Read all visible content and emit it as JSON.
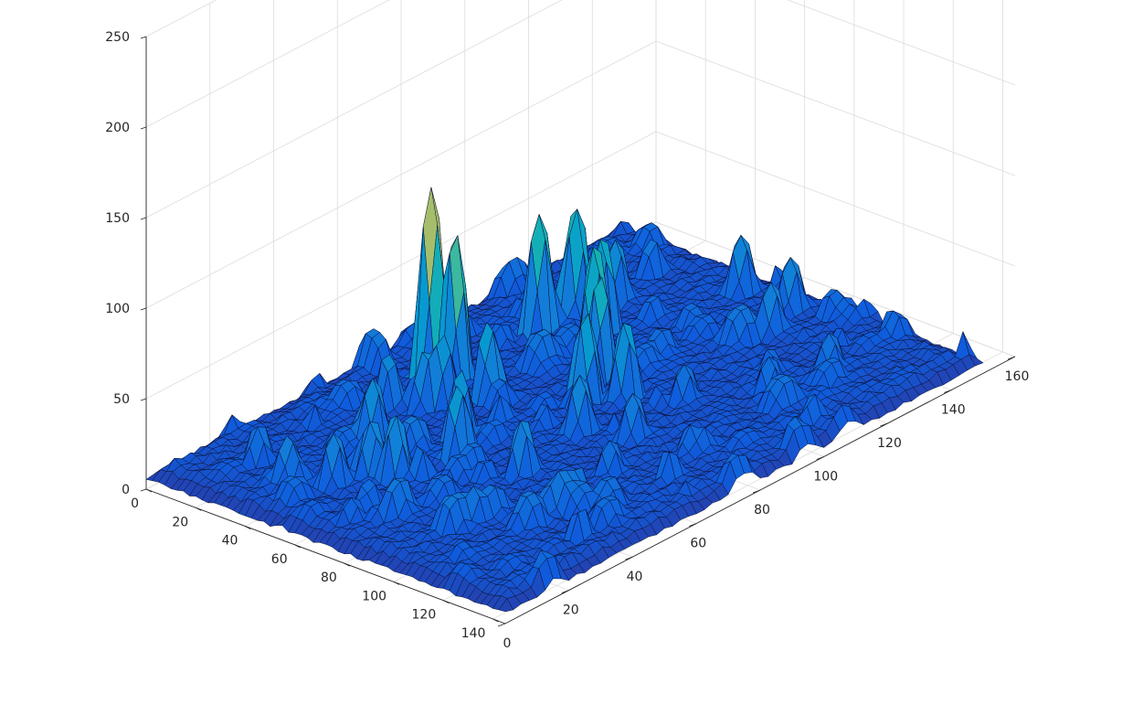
{
  "chart_data": {
    "type": "surface",
    "title": "",
    "xlabel": "",
    "ylabel": "",
    "zlabel": "",
    "view": "matlab-default-3d",
    "colormap": "parula",
    "grid": true,
    "legend": "none",
    "x_ticks": [
      0,
      20,
      40,
      60,
      80,
      100,
      120,
      140,
      160
    ],
    "y_ticks": [
      0,
      20,
      40,
      60,
      80,
      100,
      120,
      140
    ],
    "z_ticks": [
      0,
      50,
      100,
      150,
      200,
      250
    ],
    "xlim": [
      0,
      160
    ],
    "ylim": [
      0,
      145
    ],
    "zlim": [
      0,
      250
    ],
    "grid_size": [
      145,
      150
    ],
    "baseline_level": 10,
    "peaks": [
      {
        "x": 70,
        "y": 25,
        "z": 115
      },
      {
        "x": 72,
        "y": 32,
        "z": 90
      },
      {
        "x": 40,
        "y": 40,
        "z": 45
      },
      {
        "x": 54,
        "y": 28,
        "z": 38
      },
      {
        "x": 58,
        "y": 38,
        "z": 42
      },
      {
        "x": 62,
        "y": 40,
        "z": 48
      },
      {
        "x": 70,
        "y": 48,
        "z": 52
      },
      {
        "x": 100,
        "y": 30,
        "z": 75
      },
      {
        "x": 110,
        "y": 32,
        "z": 70
      },
      {
        "x": 108,
        "y": 45,
        "z": 62
      },
      {
        "x": 98,
        "y": 55,
        "z": 72
      },
      {
        "x": 92,
        "y": 65,
        "z": 65
      },
      {
        "x": 82,
        "y": 72,
        "z": 58
      },
      {
        "x": 88,
        "y": 80,
        "z": 52
      },
      {
        "x": 70,
        "y": 85,
        "z": 42
      },
      {
        "x": 48,
        "y": 90,
        "z": 40
      },
      {
        "x": 45,
        "y": 68,
        "z": 50
      },
      {
        "x": 52,
        "y": 60,
        "z": 48
      },
      {
        "x": 30,
        "y": 62,
        "z": 45
      },
      {
        "x": 28,
        "y": 55,
        "z": 40
      },
      {
        "x": 20,
        "y": 50,
        "z": 38
      },
      {
        "x": 15,
        "y": 38,
        "z": 35
      },
      {
        "x": 120,
        "y": 35,
        "z": 45
      },
      {
        "x": 140,
        "y": 60,
        "z": 42
      },
      {
        "x": 140,
        "y": 80,
        "z": 40
      },
      {
        "x": 130,
        "y": 85,
        "z": 38
      },
      {
        "x": 150,
        "y": 100,
        "z": 30
      },
      {
        "x": 125,
        "y": 115,
        "z": 30
      },
      {
        "x": 110,
        "y": 110,
        "z": 28
      },
      {
        "x": 95,
        "y": 95,
        "z": 30
      },
      {
        "x": 75,
        "y": 100,
        "z": 35
      },
      {
        "x": 60,
        "y": 110,
        "z": 28
      },
      {
        "x": 40,
        "y": 115,
        "z": 32
      },
      {
        "x": 25,
        "y": 100,
        "z": 30
      },
      {
        "x": 10,
        "y": 70,
        "z": 22
      },
      {
        "x": 5,
        "y": 5,
        "z": 15
      }
    ]
  }
}
